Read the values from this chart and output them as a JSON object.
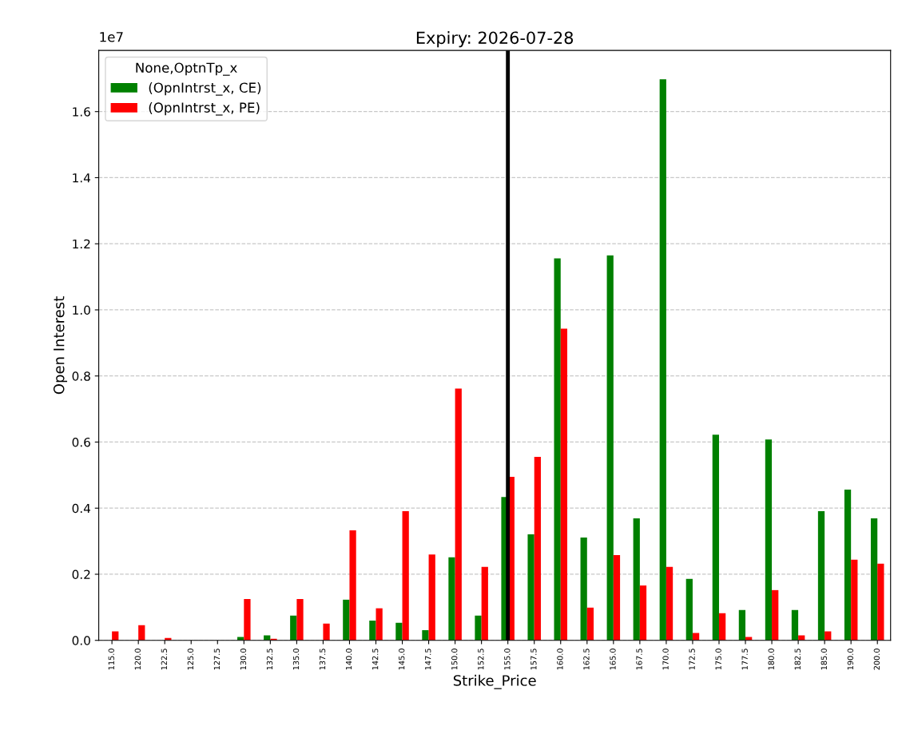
{
  "chart_data": {
    "type": "bar",
    "title": "Expiry: 2026-07-28",
    "xlabel": "Strike_Price",
    "ylabel": "Open Interest",
    "legend_title": "None,OptnTp_x",
    "legend": "top left",
    "grid": "y",
    "categories": [
      "115.0",
      "120.0",
      "122.5",
      "125.0",
      "127.5",
      "130.0",
      "132.5",
      "135.0",
      "137.5",
      "140.0",
      "142.5",
      "145.0",
      "147.5",
      "150.0",
      "152.5",
      "155.0",
      "157.5",
      "160.0",
      "162.5",
      "165.0",
      "167.5",
      "170.0",
      "172.5",
      "175.0",
      "177.5",
      "180.0",
      "182.5",
      "185.0",
      "190.0",
      "200.0"
    ],
    "series": [
      {
        "name": "(OpnIntrst_x, CE)",
        "color": "#008000",
        "values": [
          0,
          0,
          0,
          0,
          0,
          0.01,
          0.015,
          0.075,
          0,
          0.123,
          0.06,
          0.053,
          0.031,
          0.251,
          0.075,
          0.434,
          0.321,
          1.156,
          0.311,
          1.165,
          0.369,
          1.698,
          0.186,
          0.622,
          0.092,
          0.608,
          0.092,
          0.391,
          0.456,
          0.369
        ]
      },
      {
        "name": "(OpnIntrst_x, PE)",
        "color": "#ff0000",
        "values": [
          0.027,
          0.046,
          0.007,
          0,
          0,
          0.125,
          0.005,
          0.125,
          0.051,
          0.333,
          0.097,
          0.391,
          0.26,
          0.762,
          0.222,
          0.495,
          0.555,
          0.943,
          0.099,
          0.258,
          0.166,
          0.222,
          0.022,
          0.082,
          0.01,
          0.152,
          0.015,
          0.027,
          0.244,
          0.232
        ]
      }
    ],
    "ylim": [
      0,
      1.785
    ],
    "yticks": [
      {
        "value": 0,
        "label": "0.0"
      },
      {
        "value": 0.2,
        "label": "0.2"
      },
      {
        "value": 0.4,
        "label": "0.4"
      },
      {
        "value": 0.6,
        "label": "0.6"
      },
      {
        "value": 0.8,
        "label": "0.8"
      },
      {
        "value": 1.0,
        "label": "1.0"
      },
      {
        "value": 1.2,
        "label": "1.2"
      },
      {
        "value": 1.4,
        "label": "1.4"
      },
      {
        "value": 1.6,
        "label": "1.6"
      }
    ],
    "ref_lines": [
      {
        "axis": "x",
        "value": "155.0",
        "color": "#000000",
        "line_style": "solid"
      }
    ],
    "annotations": [
      "1e7"
    ]
  }
}
